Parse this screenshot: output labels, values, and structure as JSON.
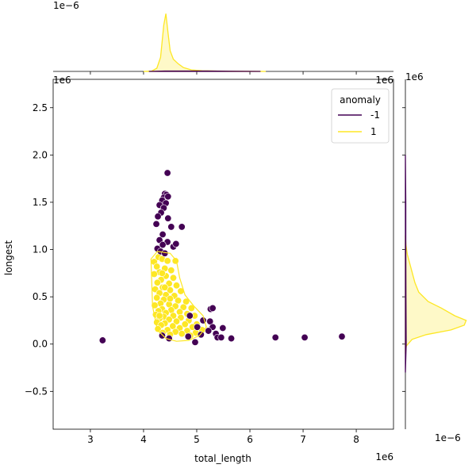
{
  "chart_data": {
    "type": "scatter",
    "xlabel": "total_length",
    "ylabel": "longest",
    "x_offset_label": "1e6",
    "y_offset_label": "1e6",
    "top_marginal_offset_label": "1e−6",
    "right_marginal_x_offset_label": "1e6",
    "right_marginal_y_offset_label": "1e6",
    "right_marginal_density_offset_label": "1e−6",
    "xlim": [
      2300000,
      8700000
    ],
    "ylim": [
      -900000,
      2800000
    ],
    "x_ticks": [
      3000000,
      4000000,
      5000000,
      6000000,
      7000000,
      8000000
    ],
    "x_tick_labels": [
      "3",
      "4",
      "5",
      "6",
      "7",
      "8"
    ],
    "y_ticks": [
      -500000,
      0,
      500000,
      1000000,
      1500000,
      2000000,
      2500000
    ],
    "y_tick_labels": [
      "−0.5",
      "0.0",
      "0.5",
      "1.0",
      "1.5",
      "2.0",
      "2.5"
    ],
    "legend": {
      "title": "anomaly",
      "placement": "top-right"
    },
    "series": [
      {
        "name": "-1",
        "color": "#440154",
        "points": [
          [
            4450000,
            1810000
          ],
          [
            4400000,
            1590000
          ],
          [
            4430000,
            1580000
          ],
          [
            4380000,
            1550000
          ],
          [
            4460000,
            1560000
          ],
          [
            4350000,
            1520000
          ],
          [
            4420000,
            1490000
          ],
          [
            4300000,
            1470000
          ],
          [
            4380000,
            1440000
          ],
          [
            4330000,
            1390000
          ],
          [
            4270000,
            1350000
          ],
          [
            4460000,
            1330000
          ],
          [
            4240000,
            1270000
          ],
          [
            4520000,
            1240000
          ],
          [
            4720000,
            1240000
          ],
          [
            4360000,
            1160000
          ],
          [
            4300000,
            1100000
          ],
          [
            4450000,
            1080000
          ],
          [
            4560000,
            1030000
          ],
          [
            4360000,
            1050000
          ],
          [
            4260000,
            1010000
          ],
          [
            4610000,
            1060000
          ],
          [
            4320000,
            980000
          ],
          [
            4400000,
            960000
          ],
          [
            5260000,
            370000
          ],
          [
            5300000,
            380000
          ],
          [
            4870000,
            300000
          ],
          [
            5120000,
            250000
          ],
          [
            5250000,
            240000
          ],
          [
            5010000,
            180000
          ],
          [
            5300000,
            180000
          ],
          [
            5490000,
            170000
          ],
          [
            5220000,
            140000
          ],
          [
            5360000,
            110000
          ],
          [
            5080000,
            100000
          ],
          [
            4840000,
            80000
          ],
          [
            5390000,
            70000
          ],
          [
            5460000,
            70000
          ],
          [
            5650000,
            60000
          ],
          [
            4970000,
            20000
          ],
          [
            4350000,
            90000
          ],
          [
            4480000,
            60000
          ],
          [
            3230000,
            40000
          ],
          [
            6480000,
            70000
          ],
          [
            7030000,
            70000
          ],
          [
            7730000,
            80000
          ]
        ]
      },
      {
        "name": "1",
        "color": "#fde725",
        "points": [
          [
            4200000,
            870000
          ],
          [
            4280000,
            920000
          ],
          [
            4350000,
            900000
          ],
          [
            4450000,
            880000
          ],
          [
            4600000,
            880000
          ],
          [
            4250000,
            820000
          ],
          [
            4400000,
            800000
          ],
          [
            4520000,
            780000
          ],
          [
            4300000,
            760000
          ],
          [
            4200000,
            740000
          ],
          [
            4420000,
            720000
          ],
          [
            4560000,
            700000
          ],
          [
            4330000,
            680000
          ],
          [
            4260000,
            650000
          ],
          [
            4480000,
            640000
          ],
          [
            4620000,
            620000
          ],
          [
            4360000,
            600000
          ],
          [
            4220000,
            580000
          ],
          [
            4500000,
            570000
          ],
          [
            4700000,
            560000
          ],
          [
            4300000,
            540000
          ],
          [
            4420000,
            520000
          ],
          [
            4580000,
            510000
          ],
          [
            4250000,
            490000
          ],
          [
            4380000,
            470000
          ],
          [
            4650000,
            460000
          ],
          [
            4800000,
            450000
          ],
          [
            4320000,
            430000
          ],
          [
            4480000,
            420000
          ],
          [
            4210000,
            410000
          ],
          [
            4600000,
            400000
          ],
          [
            4750000,
            390000
          ],
          [
            4900000,
            380000
          ],
          [
            4350000,
            370000
          ],
          [
            4520000,
            360000
          ],
          [
            4280000,
            350000
          ],
          [
            4680000,
            340000
          ],
          [
            4420000,
            330000
          ],
          [
            4820000,
            320000
          ],
          [
            4230000,
            310000
          ],
          [
            4560000,
            300000
          ],
          [
            4960000,
            300000
          ],
          [
            4380000,
            290000
          ],
          [
            4700000,
            280000
          ],
          [
            4300000,
            270000
          ],
          [
            4480000,
            260000
          ],
          [
            4850000,
            250000
          ],
          [
            4620000,
            240000
          ],
          [
            4250000,
            230000
          ],
          [
            4400000,
            220000
          ],
          [
            4780000,
            210000
          ],
          [
            5000000,
            210000
          ],
          [
            4330000,
            200000
          ],
          [
            4550000,
            190000
          ],
          [
            4920000,
            180000
          ],
          [
            4680000,
            170000
          ],
          [
            4270000,
            160000
          ],
          [
            4450000,
            150000
          ],
          [
            4820000,
            140000
          ],
          [
            5100000,
            150000
          ],
          [
            4600000,
            130000
          ],
          [
            4360000,
            120000
          ],
          [
            4980000,
            120000
          ],
          [
            4720000,
            110000
          ],
          [
            4500000,
            100000
          ],
          [
            4880000,
            90000
          ],
          [
            4300000,
            300000
          ],
          [
            4400000,
            600000
          ],
          [
            4350000,
            750000
          ],
          [
            4500000,
            480000
          ]
        ]
      }
    ],
    "marginal_x": {
      "ylim": [
        0,
        4.7e-06
      ],
      "series": [
        {
          "name": "1",
          "x": [
            4000000,
            4150000,
            4250000,
            4320000,
            4380000,
            4420000,
            4460000,
            4500000,
            4560000,
            4650000,
            4750000,
            4900000,
            5100000,
            5400000,
            5800000,
            6300000
          ],
          "y": [
            0,
            2e-08,
            2.5e-07,
            1.1e-06,
            3.6e-06,
            4.5e-06,
            3e-06,
            1.6e-06,
            9.5e-07,
            6e-07,
            3e-07,
            1.2e-07,
            5e-08,
            3e-08,
            1e-08,
            0
          ]
        },
        {
          "name": "-1",
          "x": [
            4100000,
            4400000,
            4800000,
            5200000,
            5600000,
            6200000
          ],
          "y": [
            0,
            3e-08,
            3e-08,
            3e-08,
            1e-08,
            0
          ]
        }
      ]
    },
    "marginal_y": {
      "xlim": [
        0,
        3.3e-06
      ],
      "series": [
        {
          "name": "1",
          "y": [
            -100000,
            -20000,
            50000,
            100000,
            150000,
            200000,
            250000,
            300000,
            380000,
            450000,
            550000,
            650000,
            800000,
            950000,
            1050000,
            1150000
          ],
          "x": [
            0,
            5e-08,
            3.5e-07,
            1.1e-06,
            2.4e-06,
            3.1e-06,
            3.2e-06,
            2.6e-06,
            1.9e-06,
            1.2e-06,
            7e-07,
            5e-07,
            3e-07,
            1e-07,
            3e-08,
            0
          ]
        },
        {
          "name": "-1",
          "y": [
            -300000,
            0,
            500000,
            1000000,
            1500000,
            2000000
          ],
          "x": [
            0,
            4e-08,
            3e-08,
            2e-08,
            2e-08,
            0
          ]
        }
      ]
    }
  }
}
